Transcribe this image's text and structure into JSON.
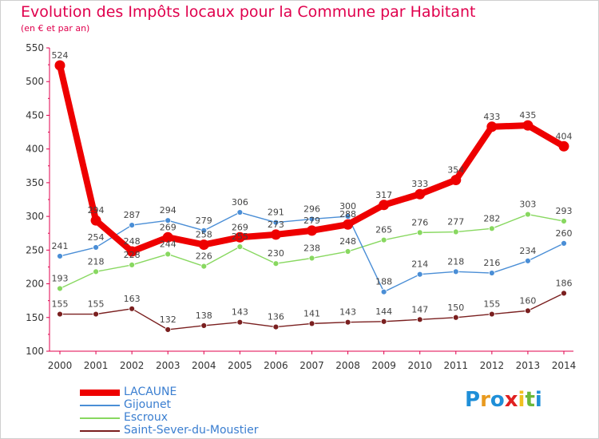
{
  "chart_data": {
    "type": "line",
    "title": "Evolution des Impôts locaux pour la Commune par Habitant",
    "subtitle": "(en € et par an)",
    "x": [
      "2000",
      "2001",
      "2002",
      "2003",
      "2004",
      "2005",
      "2006",
      "2007",
      "2008",
      "2009",
      "2010",
      "2011",
      "2012",
      "2013",
      "2014"
    ],
    "ylim": [
      100,
      550
    ],
    "yticks": [
      100,
      150,
      200,
      250,
      300,
      350,
      400,
      450,
      500,
      550
    ],
    "grid": false,
    "legend_position": "bottom-left",
    "series": [
      {
        "name": "LACAUNE",
        "color": "#ee0000",
        "values": [
          524,
          294,
          248,
          269,
          258,
          269,
          273,
          279,
          288,
          317,
          333,
          354,
          433,
          435,
          404
        ],
        "labels": [
          "524",
          "294",
          "248",
          "269",
          "258",
          "269",
          "273",
          "279",
          "288",
          "317",
          "333",
          "354",
          "433",
          "435",
          "404"
        ]
      },
      {
        "name": "Gijounet",
        "color": "#4a8ed6",
        "values": [
          241,
          254,
          287,
          294,
          279,
          306,
          291,
          296,
          300,
          188,
          214,
          218,
          216,
          234,
          260
        ],
        "labels": [
          "241",
          "254",
          "287",
          "294",
          "279",
          "306",
          "291",
          "296",
          "300",
          "188",
          "214",
          "218",
          "216",
          "234",
          "260"
        ]
      },
      {
        "name": "Escroux",
        "color": "#88d860",
        "values": [
          193,
          218,
          228,
          244,
          226,
          255,
          230,
          238,
          248,
          265,
          276,
          277,
          282,
          303,
          293
        ],
        "labels": [
          "193",
          "218",
          "228",
          "244",
          "226",
          "255",
          "230",
          "238",
          "248",
          "265",
          "276",
          "277",
          "282",
          "303",
          "293"
        ]
      },
      {
        "name": "Saint-Sever-du-Moustier",
        "color": "#7a1f1f",
        "values": [
          155,
          155,
          163,
          132,
          138,
          143,
          136,
          141,
          143,
          144,
          147,
          150,
          155,
          160,
          186
        ],
        "labels": [
          "155",
          "155",
          "163",
          "132",
          "138",
          "143",
          "136",
          "141",
          "143",
          "144",
          "147",
          "150",
          "155",
          "160",
          "186"
        ]
      }
    ]
  },
  "logo": {
    "letters": [
      "P",
      "r",
      "o",
      "x",
      "i",
      "t",
      "i"
    ],
    "colors": [
      "#1f8fd8",
      "#e89a1f",
      "#1f8fd8",
      "#e02020",
      "#f0c020",
      "#6ab83a",
      "#1f8fd8"
    ]
  }
}
